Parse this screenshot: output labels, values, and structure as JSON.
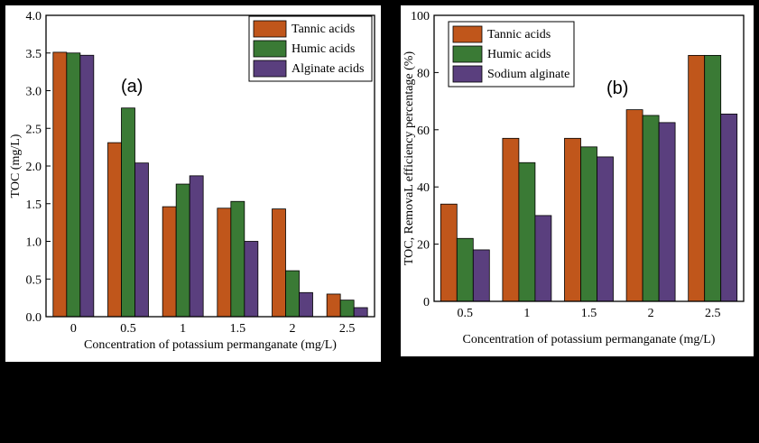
{
  "colors": {
    "tannic": "#c0561b",
    "humic": "#3a7a35",
    "alginate": "#5a3f7e"
  },
  "chart_data": [
    {
      "type": "bar",
      "panel_label": "(a)",
      "categories": [
        "0",
        "0.5",
        "1",
        "1.5",
        "2",
        "2.5"
      ],
      "series": [
        {
          "name": "Tannic acids",
          "values": [
            3.51,
            2.31,
            1.46,
            1.44,
            1.43,
            0.3
          ]
        },
        {
          "name": "Humic acids",
          "values": [
            3.5,
            2.77,
            1.76,
            1.53,
            0.61,
            0.22
          ]
        },
        {
          "name": "Alginate acids",
          "values": [
            3.47,
            2.04,
            1.87,
            1.0,
            0.32,
            0.12
          ]
        }
      ],
      "xlabel": "Concentration of potassium permanganate (mg/L)",
      "ylabel": "TOC (mg/L)",
      "ylim": [
        0,
        4.0
      ],
      "yticks": [
        "0.0",
        "0.5",
        "1.0",
        "1.5",
        "2.0",
        "2.5",
        "3.0",
        "3.5",
        "4.0"
      ],
      "legend_position": "top-right"
    },
    {
      "type": "bar",
      "panel_label": "(b)",
      "categories": [
        "0.5",
        "1",
        "1.5",
        "2",
        "2.5"
      ],
      "series": [
        {
          "name": "Tannic acids",
          "values": [
            34,
            57,
            57,
            67,
            86
          ]
        },
        {
          "name": "Humic acids",
          "values": [
            22,
            48.5,
            54,
            65,
            86
          ]
        },
        {
          "name": "Sodium alginate",
          "values": [
            18,
            30,
            50.5,
            62.5,
            65.5
          ]
        }
      ],
      "xlabel": "Concentration of potassium permanganate (mg/L)",
      "ylabel": "TOC,  RemovaL efficiency percentage (%)",
      "ylim": [
        0,
        100
      ],
      "yticks": [
        "0",
        "20",
        "40",
        "60",
        "80",
        "100"
      ],
      "legend_position": "top-left"
    }
  ]
}
